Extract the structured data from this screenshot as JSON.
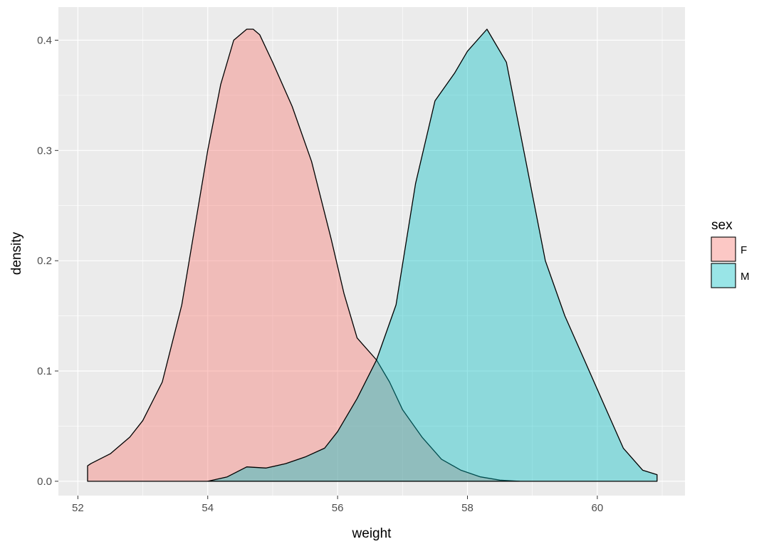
{
  "chart_data": {
    "type": "area",
    "subtype": "density",
    "xlabel": "weight",
    "ylabel": "density",
    "xlim": [
      51.7,
      61.35
    ],
    "ylim": [
      -0.013,
      0.43
    ],
    "x_ticks": [
      52,
      54,
      56,
      58,
      60
    ],
    "y_ticks": [
      0.0,
      0.1,
      0.2,
      0.3,
      0.4
    ],
    "y_tick_labels": [
      "0.0",
      "0.1",
      "0.2",
      "0.3",
      "0.4"
    ],
    "grid": true,
    "legend": {
      "title": "sex",
      "position": "right",
      "entries": [
        {
          "label": "F",
          "color": "#F8766D"
        },
        {
          "label": "M",
          "color": "#00BFC4"
        }
      ]
    },
    "series": [
      {
        "name": "F",
        "color": "#F8766D",
        "x": [
          52.15,
          52.2,
          52.5,
          52.8,
          53.0,
          53.3,
          53.6,
          53.8,
          54.0,
          54.2,
          54.4,
          54.6,
          54.7,
          54.8,
          55.0,
          55.3,
          55.6,
          55.9,
          56.1,
          56.3,
          56.6,
          56.8,
          57.0,
          57.3,
          57.6,
          57.9,
          58.2,
          58.5,
          58.8
        ],
        "values": [
          0.014,
          0.016,
          0.025,
          0.04,
          0.055,
          0.09,
          0.16,
          0.23,
          0.3,
          0.36,
          0.4,
          0.41,
          0.41,
          0.405,
          0.38,
          0.34,
          0.29,
          0.22,
          0.17,
          0.13,
          0.11,
          0.09,
          0.065,
          0.04,
          0.02,
          0.01,
          0.004,
          0.001,
          0.0
        ]
      },
      {
        "name": "M",
        "color": "#00BFC4",
        "x": [
          54.0,
          54.3,
          54.6,
          54.9,
          55.2,
          55.5,
          55.8,
          56.0,
          56.3,
          56.6,
          56.9,
          57.2,
          57.5,
          57.8,
          58.0,
          58.3,
          58.6,
          58.9,
          59.2,
          59.5,
          59.8,
          60.1,
          60.4,
          60.7,
          60.92
        ],
        "values": [
          0.0,
          0.004,
          0.013,
          0.012,
          0.016,
          0.022,
          0.03,
          0.045,
          0.075,
          0.11,
          0.16,
          0.27,
          0.345,
          0.37,
          0.39,
          0.41,
          0.38,
          0.29,
          0.2,
          0.15,
          0.11,
          0.07,
          0.03,
          0.01,
          0.006
        ]
      }
    ]
  }
}
